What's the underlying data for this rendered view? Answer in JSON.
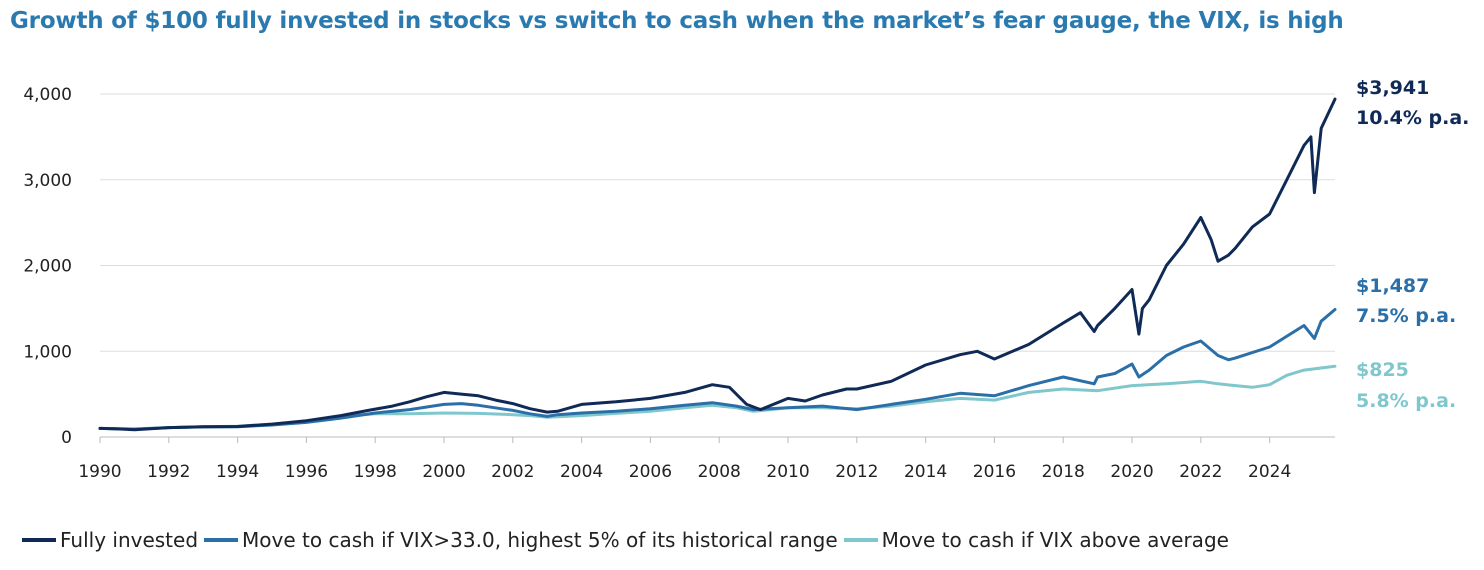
{
  "chart_data": {
    "type": "line",
    "title": "Growth of $100 fully invested in stocks vs switch to cash when the market’s fear gauge, the VIX, is high",
    "xlabel": "",
    "ylabel": "",
    "xlim": [
      1990,
      2025.9
    ],
    "ylim": [
      0,
      4000
    ],
    "x_ticks": [
      "1990",
      "1992",
      "1994",
      "1996",
      "1998",
      "2000",
      "2002",
      "2004",
      "2006",
      "2008",
      "2010",
      "2012",
      "2014",
      "2016",
      "2018",
      "2020",
      "2022",
      "2024"
    ],
    "y_ticks": [
      "0",
      "1,000",
      "2,000",
      "3,000",
      "4,000"
    ],
    "grid": "horizontal",
    "series": [
      {
        "name": "Fully invested",
        "color": "#0f2a57",
        "end_value": "$3,941",
        "cagr": "10.4% p.a.",
        "x": [
          1990,
          1990.5,
          1991,
          1992,
          1993,
          1994,
          1995,
          1996,
          1997,
          1997.8,
          1998.5,
          1999,
          1999.5,
          2000,
          2000.5,
          2001,
          2001.5,
          2002,
          2002.5,
          2003,
          2003.3,
          2004,
          2005,
          2006,
          2007,
          2007.8,
          2008.3,
          2008.8,
          2009.2,
          2010,
          2010.5,
          2011,
          2011.7,
          2012,
          2013,
          2014,
          2015,
          2015.5,
          2016,
          2017,
          2018,
          2018.5,
          2018.9,
          2019,
          2019.5,
          2020,
          2020.2,
          2020.3,
          2020.5,
          2021,
          2021.5,
          2022,
          2022.3,
          2022.5,
          2022.8,
          2023,
          2023.5,
          2024,
          2024.5,
          2025,
          2025.2,
          2025.3,
          2025.5,
          2025.9
        ],
        "y": [
          100,
          95,
          85,
          110,
          120,
          122,
          150,
          190,
          250,
          310,
          360,
          410,
          470,
          520,
          500,
          480,
          430,
          390,
          330,
          290,
          300,
          380,
          410,
          450,
          520,
          610,
          580,
          380,
          320,
          450,
          420,
          490,
          560,
          560,
          650,
          840,
          960,
          1000,
          910,
          1080,
          1330,
          1450,
          1230,
          1300,
          1500,
          1720,
          1200,
          1500,
          1600,
          2000,
          2250,
          2560,
          2300,
          2050,
          2120,
          2200,
          2450,
          2600,
          3000,
          3400,
          3500,
          2850,
          3600,
          3941
        ]
      },
      {
        "name": "Move to cash if VIX>33.0, highest 5% of its historical range",
        "color": "#2a6fa8",
        "end_value": "$1,487",
        "cagr": "7.5% p.a.",
        "x": [
          1990,
          1991,
          1992,
          1993,
          1994,
          1995,
          1996,
          1997,
          1998,
          1999,
          2000,
          2000.5,
          2001,
          2002,
          2002.5,
          2003,
          2003.3,
          2004,
          2005,
          2006,
          2007,
          2007.8,
          2008.5,
          2009,
          2010,
          2011,
          2012,
          2013,
          2014,
          2015,
          2016,
          2017,
          2018,
          2018.9,
          2019,
          2019.5,
          2020,
          2020.2,
          2020.5,
          2021,
          2021.5,
          2022,
          2022.5,
          2022.8,
          2023,
          2024,
          2025,
          2025.3,
          2025.5,
          2025.9
        ],
        "y": [
          100,
          90,
          110,
          118,
          120,
          140,
          170,
          220,
          280,
          320,
          380,
          390,
          370,
          310,
          270,
          240,
          260,
          280,
          300,
          330,
          370,
          400,
          360,
          320,
          340,
          360,
          320,
          380,
          440,
          510,
          480,
          600,
          700,
          620,
          700,
          740,
          850,
          700,
          780,
          950,
          1050,
          1120,
          950,
          900,
          920,
          1050,
          1300,
          1150,
          1350,
          1487
        ]
      },
      {
        "name": "Move to cash if VIX above average",
        "color": "#7fc7cc",
        "end_value": "$825",
        "cagr": "5.8% p.a.",
        "x": [
          1990,
          1991,
          1992,
          1993,
          1994,
          1995,
          1996,
          1997,
          1998,
          1999,
          2000,
          2001,
          2002,
          2002.5,
          2003,
          2004,
          2005,
          2006,
          2007,
          2007.8,
          2008.5,
          2009,
          2010,
          2011,
          2012,
          2013,
          2014,
          2015,
          2016,
          2017,
          2018,
          2019,
          2020,
          2021,
          2022,
          2022.5,
          2023,
          2023.5,
          2024,
          2024.5,
          2025,
          2025.9
        ],
        "y": [
          100,
          95,
          110,
          120,
          125,
          150,
          180,
          240,
          270,
          270,
          280,
          275,
          260,
          250,
          230,
          250,
          275,
          300,
          340,
          370,
          340,
          300,
          340,
          340,
          330,
          360,
          410,
          450,
          430,
          520,
          560,
          540,
          600,
          620,
          650,
          620,
          600,
          580,
          610,
          720,
          780,
          825
        ]
      }
    ]
  }
}
